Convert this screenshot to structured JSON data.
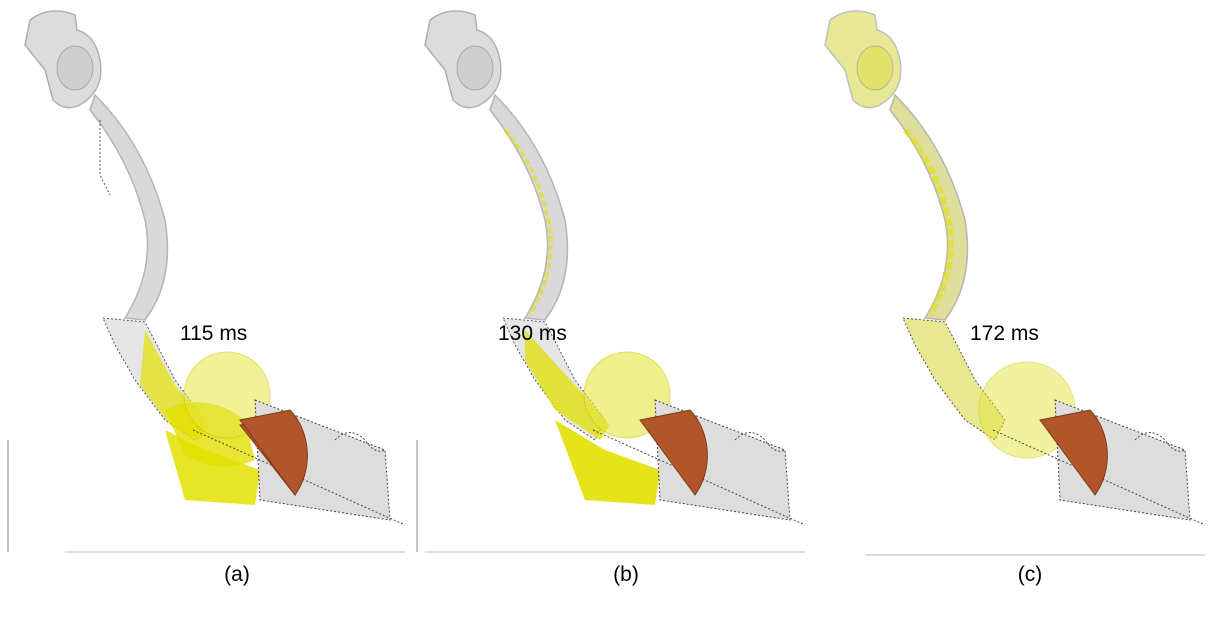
{
  "panels": [
    {
      "time": "115 ms",
      "caption": "(a)",
      "fill_fraction": 0.35
    },
    {
      "time": "130 ms",
      "caption": "(b)",
      "fill_fraction": 0.65
    },
    {
      "time": "172 ms",
      "caption": "(c)",
      "fill_fraction": 1.0
    }
  ],
  "colors": {
    "casting": "#d8d8d8",
    "casting_edge": "#b5b5b5",
    "melt": "#e2e000",
    "melt_dark": "#b9b700",
    "cut_face": "#b0562a",
    "background": "#ffffff"
  }
}
